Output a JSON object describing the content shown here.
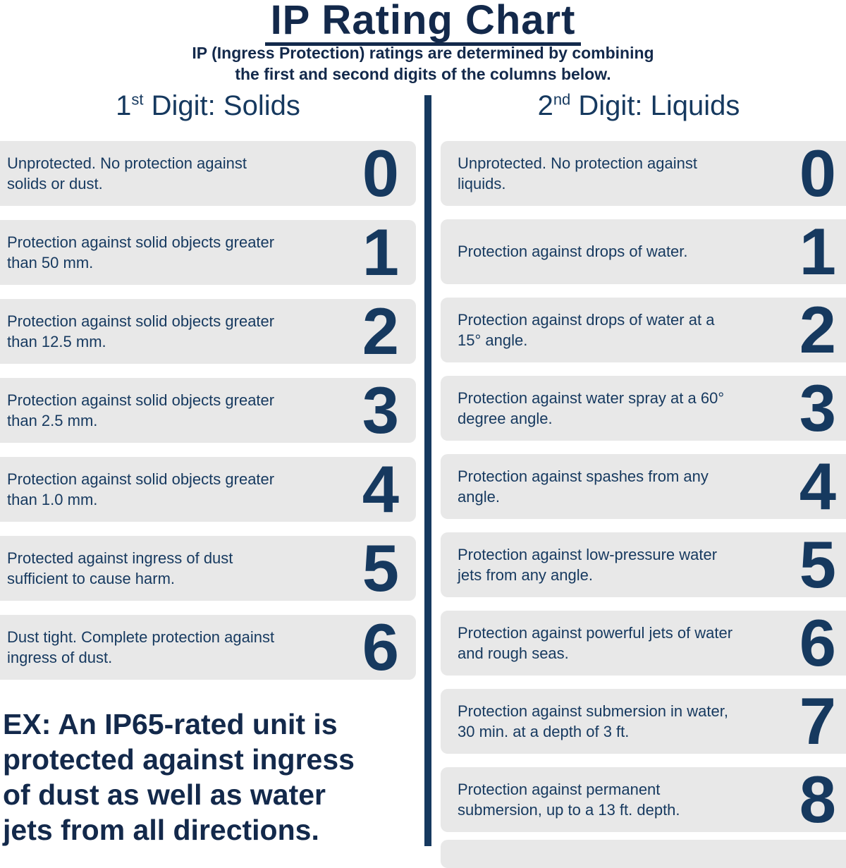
{
  "page": {
    "title": "IP Rating Chart",
    "subtitle_lines": [
      "IP (Ingress Protection) ratings are determined by combining",
      "the first and second digits of the columns below."
    ]
  },
  "columns": {
    "solids": {
      "heading_number": "1",
      "heading_ordinal": "st",
      "heading_rest": " Digit: Solids",
      "rows": [
        {
          "digit": "0",
          "description": "Unprotected. No protection against solids or dust."
        },
        {
          "digit": "1",
          "description": "Protection against solid objects greater than 50 mm."
        },
        {
          "digit": "2",
          "description": "Protection against solid objects greater than 12.5 mm."
        },
        {
          "digit": "3",
          "description": "Protection against solid objects greater than 2.5 mm."
        },
        {
          "digit": "4",
          "description": "Protection against solid objects greater than 1.0 mm."
        },
        {
          "digit": "5",
          "description": "Protected against ingress of dust sufficient to cause harm."
        },
        {
          "digit": "6",
          "description": "Dust tight. Complete protection against ingress of dust."
        }
      ]
    },
    "liquids": {
      "heading_number": "2",
      "heading_ordinal": "nd",
      "heading_rest": " Digit: Liquids",
      "rows": [
        {
          "digit": "0",
          "description": "Unprotected. No protection against liquids."
        },
        {
          "digit": "1",
          "description": "Protection against drops of water."
        },
        {
          "digit": "2",
          "description": "Protection against drops of water at a 15° angle."
        },
        {
          "digit": "3",
          "description": "Protection against water spray at a 60° degree angle."
        },
        {
          "digit": "4",
          "description": "Protection against spashes from any angle."
        },
        {
          "digit": "5",
          "description": "Protection against low-pressure water jets from any angle."
        },
        {
          "digit": "6",
          "description": "Protection against powerful jets of water and rough seas."
        },
        {
          "digit": "7",
          "description": "Protection against submersion in water, 30 min. at a depth of 3 ft."
        },
        {
          "digit": "8",
          "description": "Protection against permanent submersion, up to a 13 ft. depth."
        }
      ]
    }
  },
  "example": {
    "lines": [
      "EX: An IP65-rated unit is",
      "protected against ingress",
      "of dust as well as water",
      "jets from all directions."
    ]
  },
  "colors": {
    "navy": "#16395f",
    "navy_dark": "#13294b",
    "row_background": "#e8e8e8",
    "page_background": "#ffffff"
  }
}
